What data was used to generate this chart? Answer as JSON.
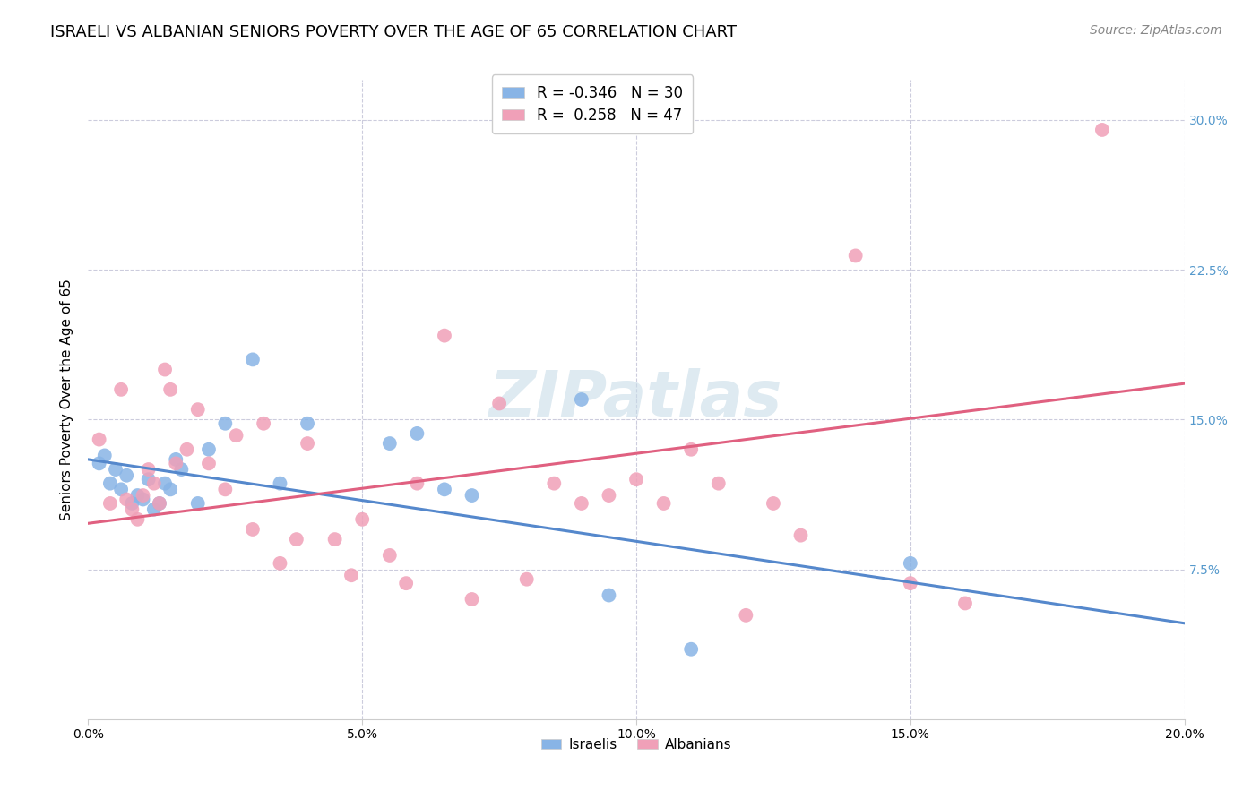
{
  "title": "ISRAELI VS ALBANIAN SENIORS POVERTY OVER THE AGE OF 65 CORRELATION CHART",
  "source": "Source: ZipAtlas.com",
  "ylabel": "Seniors Poverty Over the Age of 65",
  "watermark": "ZIPatlas",
  "xlim": [
    0.0,
    0.2
  ],
  "ylim": [
    0.0,
    0.32
  ],
  "xticks": [
    0.0,
    0.05,
    0.1,
    0.15,
    0.2
  ],
  "yticks": [
    0.075,
    0.15,
    0.225,
    0.3
  ],
  "ytick_labels_right": [
    "7.5%",
    "15.0%",
    "22.5%",
    "30.0%"
  ],
  "xtick_labels": [
    "0.0%",
    "5.0%",
    "10.0%",
    "15.0%",
    "20.0%"
  ],
  "israeli_color": "#88b4e6",
  "albanian_color": "#f0a0b8",
  "israeli_line_color": "#5588cc",
  "albanian_line_color": "#e06080",
  "israeli_label": "Israelis",
  "albanian_label": "Albanians",
  "legend_R_israeli": "-0.346",
  "legend_N_israeli": "30",
  "legend_R_albanian": "0.258",
  "legend_N_albanian": "47",
  "israeli_scatter_x": [
    0.002,
    0.003,
    0.004,
    0.005,
    0.006,
    0.007,
    0.008,
    0.009,
    0.01,
    0.011,
    0.012,
    0.013,
    0.014,
    0.015,
    0.016,
    0.017,
    0.02,
    0.022,
    0.025,
    0.03,
    0.035,
    0.04,
    0.055,
    0.06,
    0.065,
    0.07,
    0.09,
    0.095,
    0.11,
    0.15
  ],
  "israeli_scatter_y": [
    0.128,
    0.132,
    0.118,
    0.125,
    0.115,
    0.122,
    0.108,
    0.112,
    0.11,
    0.12,
    0.105,
    0.108,
    0.118,
    0.115,
    0.13,
    0.125,
    0.108,
    0.135,
    0.148,
    0.18,
    0.118,
    0.148,
    0.138,
    0.143,
    0.115,
    0.112,
    0.16,
    0.062,
    0.035,
    0.078
  ],
  "albanian_scatter_x": [
    0.002,
    0.004,
    0.006,
    0.007,
    0.008,
    0.009,
    0.01,
    0.011,
    0.012,
    0.013,
    0.014,
    0.015,
    0.016,
    0.018,
    0.02,
    0.022,
    0.025,
    0.027,
    0.03,
    0.032,
    0.035,
    0.038,
    0.04,
    0.045,
    0.048,
    0.05,
    0.055,
    0.058,
    0.06,
    0.065,
    0.07,
    0.075,
    0.08,
    0.085,
    0.09,
    0.095,
    0.1,
    0.105,
    0.11,
    0.115,
    0.12,
    0.125,
    0.13,
    0.14,
    0.15,
    0.16,
    0.185
  ],
  "albanian_scatter_y": [
    0.14,
    0.108,
    0.165,
    0.11,
    0.105,
    0.1,
    0.112,
    0.125,
    0.118,
    0.108,
    0.175,
    0.165,
    0.128,
    0.135,
    0.155,
    0.128,
    0.115,
    0.142,
    0.095,
    0.148,
    0.078,
    0.09,
    0.138,
    0.09,
    0.072,
    0.1,
    0.082,
    0.068,
    0.118,
    0.192,
    0.06,
    0.158,
    0.07,
    0.118,
    0.108,
    0.112,
    0.12,
    0.108,
    0.135,
    0.118,
    0.052,
    0.108,
    0.092,
    0.232,
    0.068,
    0.058,
    0.295
  ],
  "israeli_line_x": [
    0.0,
    0.2
  ],
  "israeli_line_y": [
    0.13,
    0.048
  ],
  "albanian_line_x": [
    0.0,
    0.2
  ],
  "albanian_line_y": [
    0.098,
    0.168
  ],
  "background_color": "#ffffff",
  "grid_color": "#ccccdd",
  "title_fontsize": 13,
  "axis_fontsize": 11,
  "tick_fontsize": 10,
  "source_fontsize": 10,
  "watermark_fontsize": 52,
  "watermark_color": "#c8dce8",
  "right_tick_color": "#5599cc"
}
